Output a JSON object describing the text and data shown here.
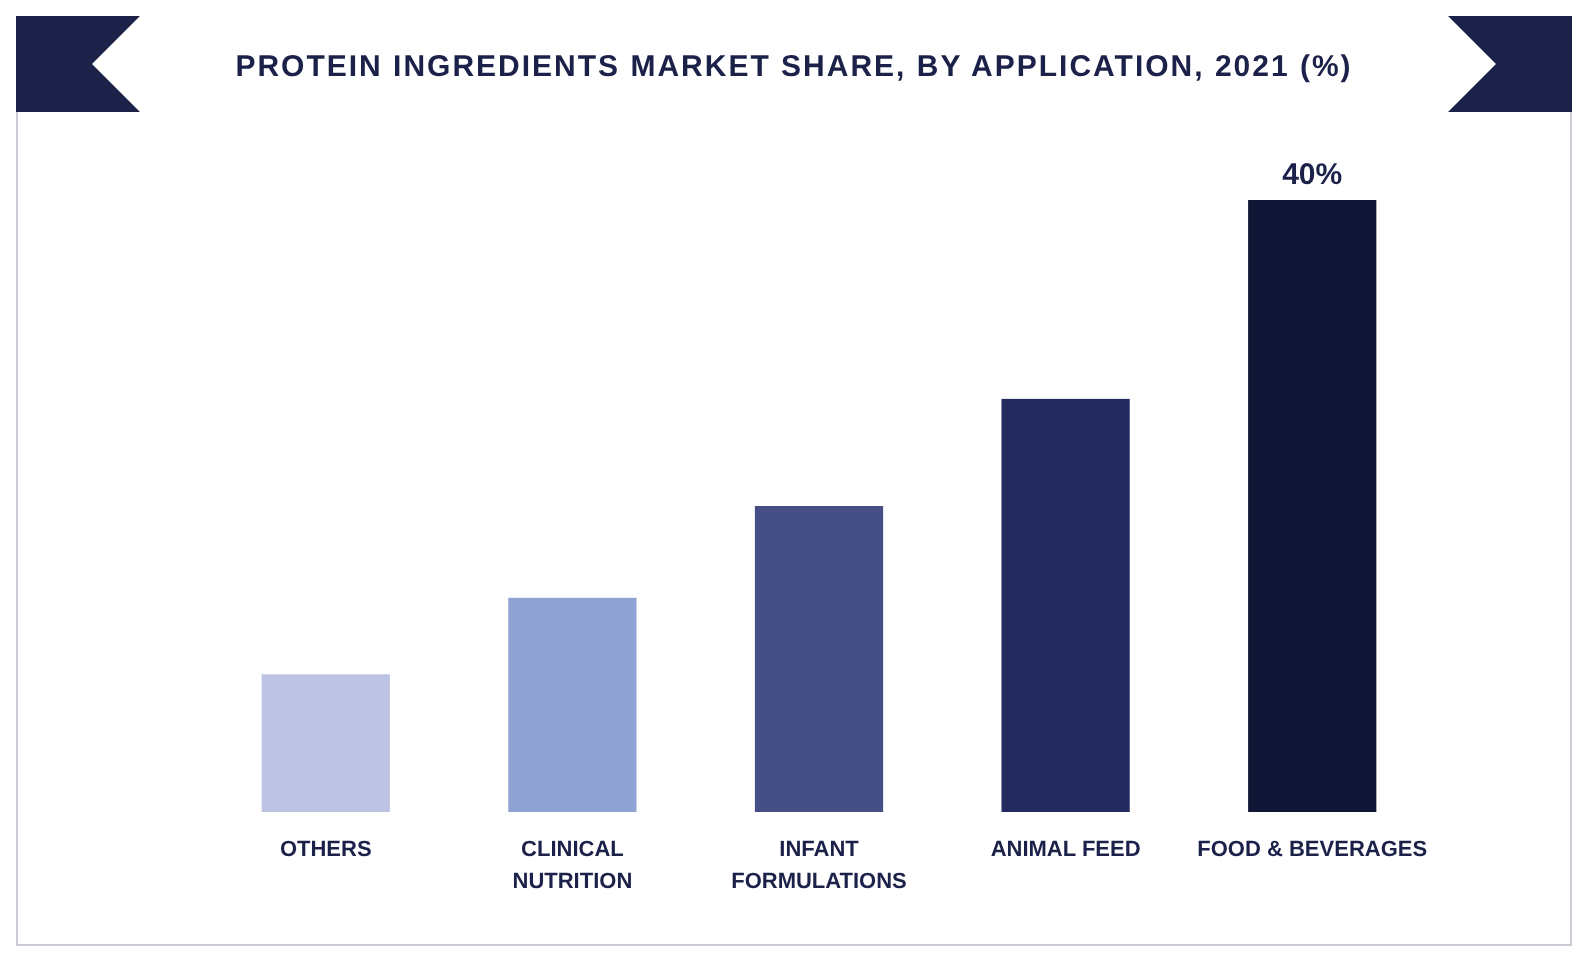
{
  "chart_data": {
    "type": "bar",
    "title": "PROTEIN INGREDIENTS MARKET SHARE, BY APPLICATION, 2021 (%)",
    "categories": [
      "OTHERS",
      "CLINICAL\nNUTRITION",
      "INFANT\nFORMULATIONS",
      "ANIMAL FEED",
      "FOOD & BEVERAGES"
    ],
    "values": [
      9,
      14,
      20,
      27,
      40
    ],
    "colors": [
      "#bcc3e3",
      "#8fa3d3",
      "#464f85",
      "#232a5e",
      "#0f1635"
    ],
    "value_labels": [
      null,
      null,
      null,
      null,
      "40%"
    ]
  }
}
